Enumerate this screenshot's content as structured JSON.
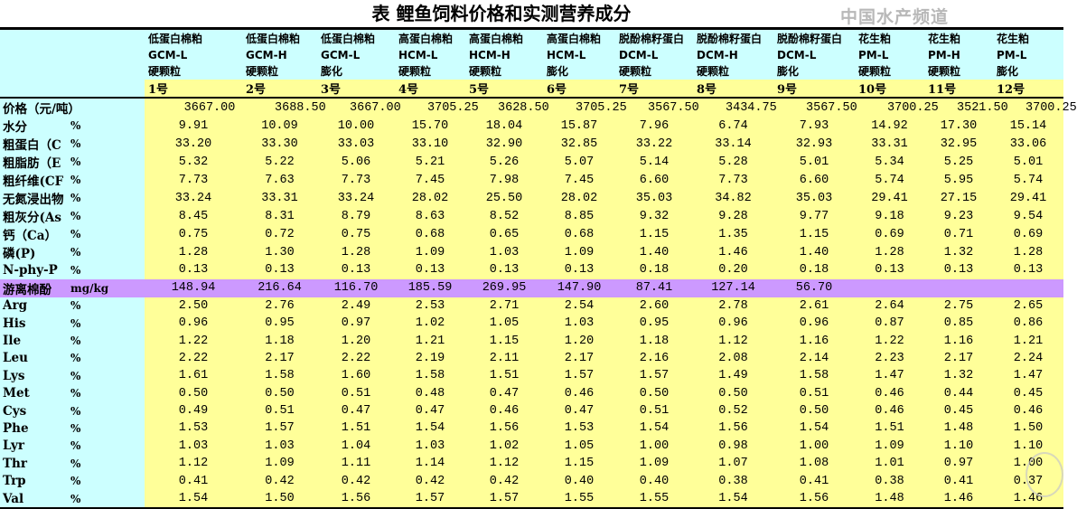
{
  "title": "表  鲤鱼饲料价格和实测营养成分",
  "columns": [
    {
      "name": "低蛋白棉粕",
      "code": "GCM-L",
      "form": "硬颗粒",
      "no": "1号"
    },
    {
      "name": "低蛋白棉粕",
      "code": "GCM-H",
      "form": "硬颗粒",
      "no": "2号"
    },
    {
      "name": "低蛋白棉粕",
      "code": "GCM-L",
      "form": "膨化",
      "no": "3号"
    },
    {
      "name": "高蛋白棉粕",
      "code": "HCM-L",
      "form": "硬颗粒",
      "no": "4号"
    },
    {
      "name": "高蛋白棉粕",
      "code": "HCM-H",
      "form": "硬颗粒",
      "no": "5号"
    },
    {
      "name": "高蛋白棉粕",
      "code": "HCM-L",
      "form": "膨化",
      "no": "6号"
    },
    {
      "name": "脱酚棉籽蛋白",
      "code": "DCM-L",
      "form": "硬颗粒",
      "no": "7号"
    },
    {
      "name": "脱酚棉籽蛋白",
      "code": "DCM-H",
      "form": "硬颗粒",
      "no": "8号"
    },
    {
      "name": "脱酚棉籽蛋白",
      "code": "DCM-L",
      "form": "膨化",
      "no": "9号"
    },
    {
      "name": "花生粕",
      "code": "PM-L",
      "form": "硬颗粒",
      "no": "10号"
    },
    {
      "name": "花生粕",
      "code": "PM-H",
      "form": "硬颗粒",
      "no": "11号"
    },
    {
      "name": "花生粕",
      "code": "PM-L",
      "form": "膨化",
      "no": "12号"
    }
  ],
  "rows": [
    {
      "label": "价格（元/吨）",
      "unit": "",
      "values": [
        "3667.00",
        "3688.50",
        "3667.00",
        "3705.25",
        "3628.50",
        "3705.25",
        "3567.50",
        "3434.75",
        "3567.50",
        "3700.25",
        "3521.50",
        "3700.25"
      ]
    },
    {
      "label": "水分",
      "unit": "%",
      "values": [
        "9.91",
        "10.09",
        "10.00",
        "15.70",
        "18.04",
        "15.87",
        "7.96",
        "6.74",
        "7.93",
        "14.92",
        "17.30",
        "15.14"
      ]
    },
    {
      "label": "粗蛋白（C",
      "unit": "%",
      "values": [
        "33.20",
        "33.30",
        "33.03",
        "33.10",
        "32.90",
        "32.85",
        "33.22",
        "33.14",
        "32.93",
        "33.31",
        "32.95",
        "33.06"
      ]
    },
    {
      "label": "粗脂肪（E",
      "unit": "%",
      "values": [
        "5.32",
        "5.22",
        "5.06",
        "5.21",
        "5.26",
        "5.07",
        "5.14",
        "5.28",
        "5.01",
        "5.34",
        "5.25",
        "5.01"
      ]
    },
    {
      "label": "粗纤维(CF",
      "unit": "%",
      "values": [
        "7.73",
        "7.63",
        "7.73",
        "7.45",
        "7.98",
        "7.45",
        "6.60",
        "7.73",
        "6.60",
        "5.74",
        "5.95",
        "5.74"
      ]
    },
    {
      "label": "无氮浸出物",
      "unit": "%",
      "values": [
        "33.24",
        "33.31",
        "33.24",
        "28.02",
        "25.50",
        "28.02",
        "35.03",
        "34.82",
        "35.03",
        "29.41",
        "27.15",
        "29.41"
      ]
    },
    {
      "label": "粗灰分(As",
      "unit": "%",
      "values": [
        "8.45",
        "8.31",
        "8.79",
        "8.63",
        "8.52",
        "8.85",
        "9.32",
        "9.28",
        "9.77",
        "9.18",
        "9.23",
        "9.54"
      ]
    },
    {
      "label": "钙（Ca）",
      "unit": "%",
      "values": [
        "0.75",
        "0.72",
        "0.75",
        "0.68",
        "0.65",
        "0.68",
        "1.15",
        "1.35",
        "1.15",
        "0.69",
        "0.71",
        "0.69"
      ]
    },
    {
      "label": "磷(P)",
      "unit": "%",
      "values": [
        "1.28",
        "1.30",
        "1.28",
        "1.09",
        "1.03",
        "1.09",
        "1.40",
        "1.46",
        "1.40",
        "1.28",
        "1.32",
        "1.28"
      ]
    },
    {
      "label": "N-phy-P",
      "unit": "%",
      "values": [
        "0.13",
        "0.13",
        "0.13",
        "0.13",
        "0.13",
        "0.13",
        "0.18",
        "0.20",
        "0.18",
        "0.13",
        "0.13",
        "0.13"
      ]
    },
    {
      "label": "游离棉酚",
      "unit": "mg/kg",
      "highlight": true,
      "values": [
        "148.94",
        "216.64",
        "116.70",
        "185.59",
        "269.95",
        "147.90",
        "87.41",
        "127.14",
        "56.70",
        "",
        "",
        ""
      ]
    },
    {
      "label": "Arg",
      "unit": "%",
      "values": [
        "2.50",
        "2.76",
        "2.49",
        "2.53",
        "2.71",
        "2.54",
        "2.60",
        "2.78",
        "2.61",
        "2.64",
        "2.75",
        "2.65"
      ]
    },
    {
      "label": "His",
      "unit": "%",
      "values": [
        "0.96",
        "0.95",
        "0.97",
        "1.02",
        "1.05",
        "1.03",
        "0.95",
        "0.96",
        "0.96",
        "0.87",
        "0.85",
        "0.86"
      ]
    },
    {
      "label": "Ile",
      "unit": "%",
      "values": [
        "1.22",
        "1.18",
        "1.20",
        "1.21",
        "1.15",
        "1.20",
        "1.18",
        "1.12",
        "1.16",
        "1.22",
        "1.16",
        "1.21"
      ]
    },
    {
      "label": "Leu",
      "unit": "%",
      "values": [
        "2.22",
        "2.17",
        "2.22",
        "2.19",
        "2.11",
        "2.17",
        "2.16",
        "2.08",
        "2.14",
        "2.23",
        "2.17",
        "2.24"
      ]
    },
    {
      "label": "Lys",
      "unit": "%",
      "values": [
        "1.61",
        "1.58",
        "1.60",
        "1.58",
        "1.51",
        "1.57",
        "1.57",
        "1.49",
        "1.58",
        "1.47",
        "1.32",
        "1.47"
      ]
    },
    {
      "label": "Met",
      "unit": "%",
      "values": [
        "0.50",
        "0.50",
        "0.51",
        "0.48",
        "0.47",
        "0.46",
        "0.50",
        "0.50",
        "0.51",
        "0.46",
        "0.44",
        "0.45"
      ]
    },
    {
      "label": "Cys",
      "unit": "%",
      "values": [
        "0.49",
        "0.51",
        "0.47",
        "0.47",
        "0.46",
        "0.47",
        "0.51",
        "0.52",
        "0.50",
        "0.46",
        "0.45",
        "0.46"
      ]
    },
    {
      "label": "Phe",
      "unit": "%",
      "values": [
        "1.53",
        "1.57",
        "1.51",
        "1.54",
        "1.56",
        "1.53",
        "1.54",
        "1.56",
        "1.54",
        "1.51",
        "1.48",
        "1.50"
      ]
    },
    {
      "label": "Lyr",
      "unit": "%",
      "values": [
        "1.03",
        "1.03",
        "1.04",
        "1.03",
        "1.02",
        "1.05",
        "1.00",
        "0.98",
        "1.00",
        "1.09",
        "1.10",
        "1.10"
      ]
    },
    {
      "label": "Thr",
      "unit": "%",
      "values": [
        "1.12",
        "1.09",
        "1.11",
        "1.14",
        "1.12",
        "1.15",
        "1.09",
        "1.07",
        "1.08",
        "1.01",
        "0.97",
        "1.00"
      ]
    },
    {
      "label": "Trp",
      "unit": "%",
      "values": [
        "0.41",
        "0.42",
        "0.42",
        "0.42",
        "0.42",
        "0.40",
        "0.40",
        "0.38",
        "0.41",
        "0.38",
        "0.41",
        "0.37"
      ]
    },
    {
      "label": "Val",
      "unit": "%",
      "values": [
        "1.54",
        "1.50",
        "1.56",
        "1.57",
        "1.57",
        "1.55",
        "1.55",
        "1.54",
        "1.56",
        "1.48",
        "1.46",
        "1.46"
      ]
    }
  ],
  "watermark": "中国水产频道",
  "colors": {
    "header_bg": "#ccffff",
    "data_bg": "#ffff99",
    "highlight_bg": "#cc99ff"
  }
}
